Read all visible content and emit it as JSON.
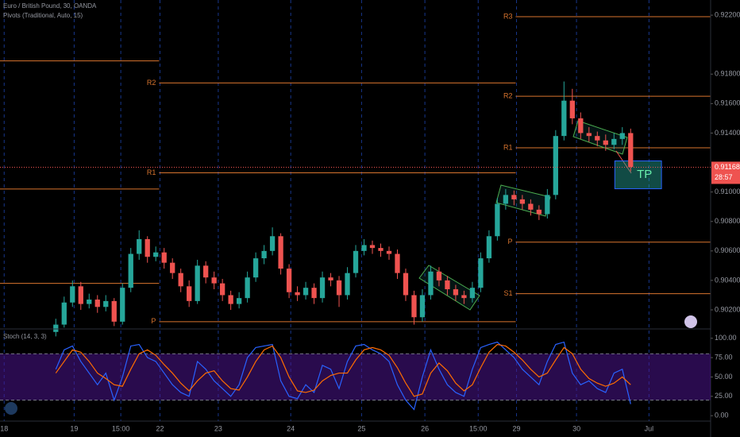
{
  "chart_data": [
    {
      "type": "candlestick",
      "title": "Euro / British Pound, 30, OANDA",
      "subtitle": "Pivots (Traditional, Auto, 15)",
      "up_color": "#26a69a",
      "down_color": "#ef5350",
      "open": [
        0.9005,
        0.901,
        0.9025,
        0.9036,
        0.9024,
        0.9027,
        0.9022,
        0.9026,
        0.9012,
        0.9035,
        0.9058,
        0.9068,
        0.9056,
        0.9059,
        0.9052,
        0.9045,
        0.9036,
        0.9026,
        0.905,
        0.9042,
        0.9038,
        0.903,
        0.9024,
        0.9028,
        0.9042,
        0.9055,
        0.906,
        0.907,
        0.9048,
        0.9032,
        0.903,
        0.9035,
        0.9028,
        0.9042,
        0.904,
        0.903,
        0.9045,
        0.906,
        0.9064,
        0.9062,
        0.906,
        0.9058,
        0.9045,
        0.903,
        0.9015,
        0.903,
        0.9046,
        0.904,
        0.9034,
        0.903,
        0.9028,
        0.9035,
        0.9055,
        0.907,
        0.9092,
        0.9098,
        0.9095,
        0.9092,
        0.9088,
        0.9085,
        0.9098,
        0.9138,
        0.9162,
        0.915,
        0.914,
        0.9138,
        0.9135,
        0.9132,
        0.9136,
        0.914
      ],
      "high": [
        0.9014,
        0.9029,
        0.904,
        0.9039,
        0.9031,
        0.903,
        0.903,
        0.9028,
        0.9038,
        0.9062,
        0.9074,
        0.907,
        0.9063,
        0.9062,
        0.9055,
        0.9048,
        0.904,
        0.9054,
        0.9053,
        0.9046,
        0.9041,
        0.9033,
        0.9032,
        0.9046,
        0.9059,
        0.9064,
        0.9076,
        0.9072,
        0.9051,
        0.9036,
        0.9039,
        0.9038,
        0.9046,
        0.9045,
        0.9043,
        0.9049,
        0.9064,
        0.9068,
        0.9067,
        0.9065,
        0.9063,
        0.9061,
        0.9048,
        0.9033,
        0.9034,
        0.905,
        0.9049,
        0.9043,
        0.9037,
        0.9033,
        0.9039,
        0.9059,
        0.9074,
        0.9096,
        0.9102,
        0.9101,
        0.9098,
        0.9095,
        0.9091,
        0.9102,
        0.9142,
        0.9175,
        0.917,
        0.9154,
        0.9144,
        0.9141,
        0.9139,
        0.914,
        0.9144,
        0.9143
      ],
      "low": [
        0.9002,
        0.9008,
        0.9022,
        0.902,
        0.9021,
        0.9018,
        0.9019,
        0.9009,
        0.901,
        0.9032,
        0.9054,
        0.9052,
        0.9053,
        0.9048,
        0.9041,
        0.9032,
        0.9022,
        0.9024,
        0.9038,
        0.9034,
        0.9026,
        0.902,
        0.9021,
        0.9025,
        0.9039,
        0.9051,
        0.9057,
        0.9044,
        0.9028,
        0.9026,
        0.9027,
        0.9024,
        0.9025,
        0.9036,
        0.9022,
        0.9027,
        0.9042,
        0.9057,
        0.9058,
        0.9056,
        0.9054,
        0.9041,
        0.9026,
        0.901,
        0.9012,
        0.9027,
        0.9036,
        0.903,
        0.9026,
        0.9024,
        0.9025,
        0.9032,
        0.9052,
        0.9067,
        0.9088,
        0.9091,
        0.9088,
        0.9084,
        0.9081,
        0.9082,
        0.9095,
        0.9135,
        0.9146,
        0.9136,
        0.9134,
        0.9131,
        0.9128,
        0.9129,
        0.9132,
        0.9114
      ],
      "close": [
        0.901,
        0.9025,
        0.9036,
        0.9024,
        0.9027,
        0.9022,
        0.9026,
        0.9012,
        0.9035,
        0.9058,
        0.9068,
        0.9056,
        0.9059,
        0.9052,
        0.9045,
        0.9036,
        0.9026,
        0.905,
        0.9042,
        0.9038,
        0.903,
        0.9024,
        0.9028,
        0.9042,
        0.9055,
        0.906,
        0.907,
        0.9048,
        0.9032,
        0.903,
        0.9035,
        0.9028,
        0.9042,
        0.904,
        0.903,
        0.9045,
        0.906,
        0.9064,
        0.9062,
        0.906,
        0.9058,
        0.9045,
        0.903,
        0.9015,
        0.903,
        0.9046,
        0.904,
        0.9034,
        0.903,
        0.9028,
        0.9035,
        0.9055,
        0.907,
        0.9092,
        0.9098,
        0.9095,
        0.9092,
        0.9088,
        0.9085,
        0.9098,
        0.9138,
        0.9162,
        0.915,
        0.914,
        0.9138,
        0.9135,
        0.9132,
        0.9136,
        0.914,
        0.9117
      ],
      "xlim": [
        -6.7,
        78.6
      ],
      "xticks": [
        {
          "value": -6.2,
          "label": "18"
        },
        {
          "value": 2.2,
          "label": "19"
        },
        {
          "value": 7.8,
          "label": "15:00"
        },
        {
          "value": 12.5,
          "label": "22"
        },
        {
          "value": 19.5,
          "label": "23"
        },
        {
          "value": 28.2,
          "label": "24"
        },
        {
          "value": 36.7,
          "label": "25"
        },
        {
          "value": 44.3,
          "label": "26"
        },
        {
          "value": 50.7,
          "label": "15:00"
        },
        {
          "value": 55.3,
          "label": "29"
        },
        {
          "value": 62.5,
          "label": "30"
        },
        {
          "value": 71.2,
          "label": "Jul"
        }
      ],
      "ylim": [
        0.90076,
        0.92303
      ],
      "yticks": [
        {
          "value": 0.902,
          "label": "0.90200"
        },
        {
          "value": 0.904,
          "label": "0.90400"
        },
        {
          "value": 0.906,
          "label": "0.90600"
        },
        {
          "value": 0.908,
          "label": "0.90800"
        },
        {
          "value": 0.91,
          "label": "0.91000"
        },
        {
          "value": 0.914,
          "label": "0.91400"
        },
        {
          "value": 0.916,
          "label": "0.91600"
        },
        {
          "value": 0.918,
          "label": "0.91800"
        },
        {
          "value": 0.922,
          "label": "0.92200"
        }
      ],
      "pivot_color": "#d8742e",
      "pivots": [
        {
          "value": 0.9189,
          "x0": -6.7,
          "x1": 12.4
        },
        {
          "value": 0.9102,
          "x0": -6.7,
          "x1": 12.4
        },
        {
          "value": 0.9038,
          "x0": -6.7,
          "x1": 12.4
        },
        {
          "label": "R2",
          "value": 0.9174,
          "x0": 12.4,
          "x1": 55.2
        },
        {
          "label": "R1",
          "value": 0.9113,
          "x0": 12.4,
          "x1": 55.2
        },
        {
          "label": "P",
          "value": 0.9012,
          "x0": 12.4,
          "x1": 55.2
        },
        {
          "label": "R3",
          "value": 0.9219,
          "x0": 55.2,
          "x1": 78.6
        },
        {
          "label": "R2",
          "value": 0.9165,
          "x0": 55.2,
          "x1": 78.6
        },
        {
          "label": "R1",
          "value": 0.913,
          "x0": 55.2,
          "x1": 78.6
        },
        {
          "label": "P",
          "value": 0.9066,
          "x0": 55.2,
          "x1": 78.6
        },
        {
          "label": "S1",
          "value": 0.9031,
          "x0": 55.2,
          "x1": 78.6
        }
      ],
      "last_price": {
        "value": 0.91168,
        "label": "0.91168"
      },
      "countdown": "28:57",
      "target_box": {
        "label": "TP",
        "top": 0.91211,
        "bottom": 0.91022,
        "x0": 67.1,
        "x1": 72.7
      }
    },
    {
      "type": "line",
      "title": "Stoch (14, 3, 3)",
      "series": [
        {
          "color": "#2962ff",
          "values": [
            60,
            85,
            90,
            70,
            55,
            40,
            55,
            20,
            50,
            90,
            92,
            75,
            70,
            55,
            40,
            30,
            25,
            70,
            60,
            45,
            35,
            25,
            40,
            75,
            88,
            90,
            92,
            45,
            25,
            22,
            40,
            30,
            65,
            60,
            35,
            70,
            90,
            92,
            85,
            80,
            70,
            40,
            20,
            8,
            50,
            85,
            60,
            40,
            30,
            25,
            60,
            88,
            92,
            95,
            85,
            75,
            60,
            50,
            40,
            70,
            92,
            95,
            55,
            40,
            45,
            35,
            30,
            55,
            60,
            15
          ]
        },
        {
          "color": "#ff6d00",
          "values": [
            55,
            70,
            85,
            82,
            70,
            55,
            48,
            40,
            38,
            60,
            80,
            85,
            78,
            66,
            55,
            42,
            32,
            45,
            55,
            58,
            45,
            35,
            33,
            50,
            70,
            85,
            90,
            75,
            50,
            32,
            30,
            33,
            45,
            52,
            55,
            55,
            72,
            85,
            88,
            85,
            78,
            62,
            42,
            25,
            28,
            55,
            68,
            58,
            42,
            32,
            40,
            62,
            82,
            92,
            90,
            82,
            72,
            60,
            50,
            55,
            72,
            88,
            80,
            60,
            48,
            42,
            38,
            42,
            50,
            40
          ]
        }
      ],
      "band": [
        20,
        80
      ],
      "band_color": "#4a148c",
      "ylim": [
        -7,
        111
      ],
      "yticks": [
        {
          "value": 0,
          "label": "0.00"
        },
        {
          "value": 25,
          "label": "25.00"
        },
        {
          "value": 50,
          "label": "50.00"
        },
        {
          "value": 75,
          "label": "75.00"
        },
        {
          "value": 100,
          "label": "100.00"
        }
      ]
    }
  ]
}
